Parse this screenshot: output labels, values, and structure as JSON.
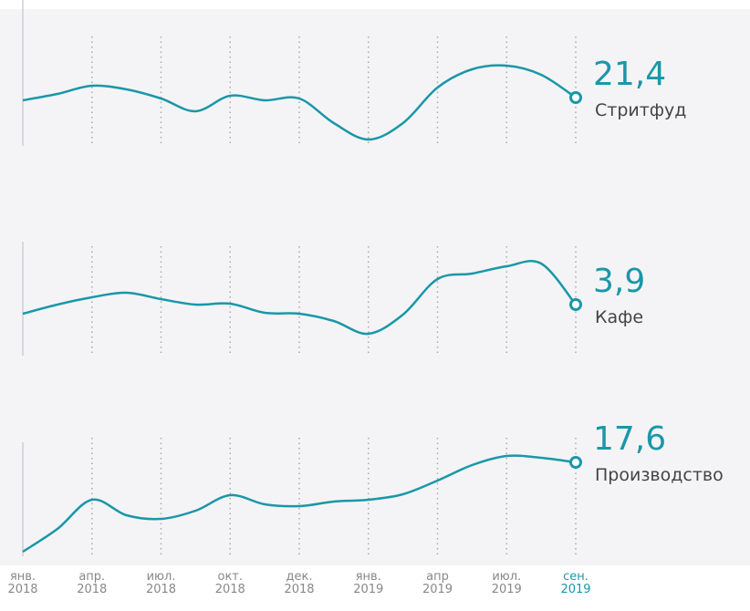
{
  "chart_data": [
    {
      "type": "line",
      "ylim": [
        16.1,
        28.1
      ],
      "highlight": 8,
      "categories": [
        "янв.\n2018",
        null,
        "апр.\n2018",
        null,
        "июл.\n2018",
        null,
        "окт.\n2018",
        null,
        "дек.\n2018",
        null,
        "янв.\n2019",
        null,
        "апр\n2019",
        null,
        "июл.\n2019",
        null,
        "сен.\n2019"
      ],
      "series": [
        {
          "name": "Стритфуд",
          "color": "#1a97a8",
          "values": [
            21.1,
            21.8,
            22.7,
            22.3,
            21.3,
            19.9,
            21.6,
            21.1,
            21.3,
            18.6,
            16.8,
            18.6,
            22.5,
            24.5,
            24.9,
            23.9,
            21.4
          ],
          "value_labels": [
            null,
            null,
            null,
            null,
            null,
            null,
            null,
            null,
            null,
            null,
            null,
            null,
            null,
            null,
            null,
            null,
            "21,4"
          ]
        }
      ]
    },
    {
      "type": "line",
      "ylim": [
        1.1,
        7.1
      ],
      "highlight": 8,
      "categories": [
        "янв.\n2018",
        null,
        "апр.\n2018",
        null,
        "июл.\n2018",
        null,
        "окт.\n2018",
        null,
        "дек.\n2018",
        null,
        "янв.\n2019",
        null,
        "апр\n2019",
        null,
        "июл.\n2019",
        null,
        "сен.\n2019"
      ],
      "series": [
        {
          "name": "Кафе",
          "color": "#1a97a8",
          "values": [
            3.4,
            3.9,
            4.3,
            4.55,
            4.2,
            3.9,
            3.95,
            3.45,
            3.4,
            3.0,
            2.3,
            3.35,
            5.3,
            5.6,
            6.0,
            6.15,
            3.9
          ],
          "value_labels": [
            null,
            null,
            null,
            null,
            null,
            null,
            null,
            null,
            null,
            null,
            null,
            null,
            null,
            null,
            null,
            null,
            "3,9"
          ]
        }
      ]
    },
    {
      "type": "line",
      "ylim": [
        7.3,
        20.3
      ],
      "highlight": 8,
      "categories": [
        "янв.\n2018",
        null,
        "апр.\n2018",
        null,
        "июл.\n2018",
        null,
        "окт.\n2018",
        null,
        "дек.\n2018",
        null,
        "янв.\n2019",
        null,
        "апр\n2019",
        null,
        "июл.\n2019",
        null,
        "сен.\n2019"
      ],
      "series": [
        {
          "name": "Производство",
          "color": "#1a97a8",
          "values": [
            7.8,
            10.3,
            13.5,
            11.8,
            11.4,
            12.3,
            14.0,
            13.0,
            12.8,
            13.3,
            13.5,
            14.1,
            15.6,
            17.3,
            18.3,
            18.1,
            17.6
          ],
          "value_labels": [
            null,
            null,
            null,
            null,
            null,
            null,
            null,
            null,
            null,
            null,
            null,
            null,
            null,
            null,
            null,
            null,
            "17,6"
          ]
        }
      ]
    }
  ]
}
